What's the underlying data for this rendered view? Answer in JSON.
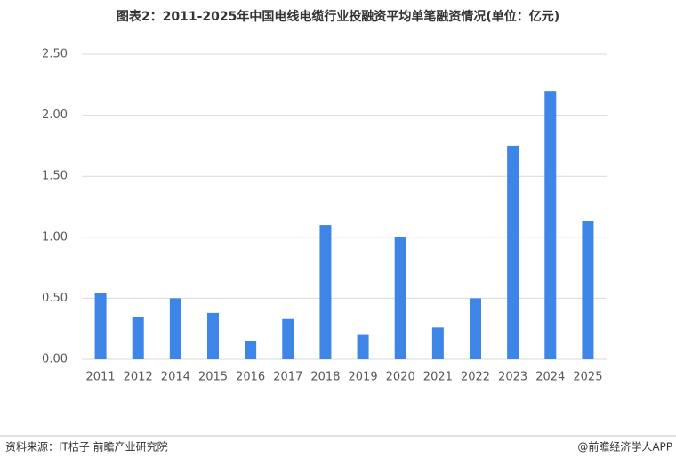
{
  "chart_data": {
    "type": "bar",
    "title": "图表2：2011-2025年中国电线电缆行业投融资平均单笔融资情况(单位：亿元)",
    "categories": [
      "2011",
      "2012",
      "2014",
      "2015",
      "2016",
      "2017",
      "2018",
      "2019",
      "2020",
      "2021",
      "2022",
      "2023",
      "2024",
      "2025"
    ],
    "values": [
      0.54,
      0.35,
      0.5,
      0.38,
      0.15,
      0.33,
      1.1,
      0.2,
      1.0,
      0.26,
      0.5,
      1.75,
      2.2,
      1.13
    ],
    "color": "#3d86e8",
    "ylim": [
      0,
      2.5
    ],
    "yticks": [
      {
        "value": 0,
        "label": "0.00"
      },
      {
        "value": 0.5,
        "label": "0.50"
      },
      {
        "value": 1,
        "label": "1.00"
      },
      {
        "value": 1.5,
        "label": "1.50"
      },
      {
        "value": 2,
        "label": "2.00"
      },
      {
        "value": 2.5,
        "label": "2.50"
      }
    ],
    "grid": true,
    "source": "资料来源：IT桔子 前瞻产业研究院",
    "brand": "@前瞻经济学人APP"
  }
}
